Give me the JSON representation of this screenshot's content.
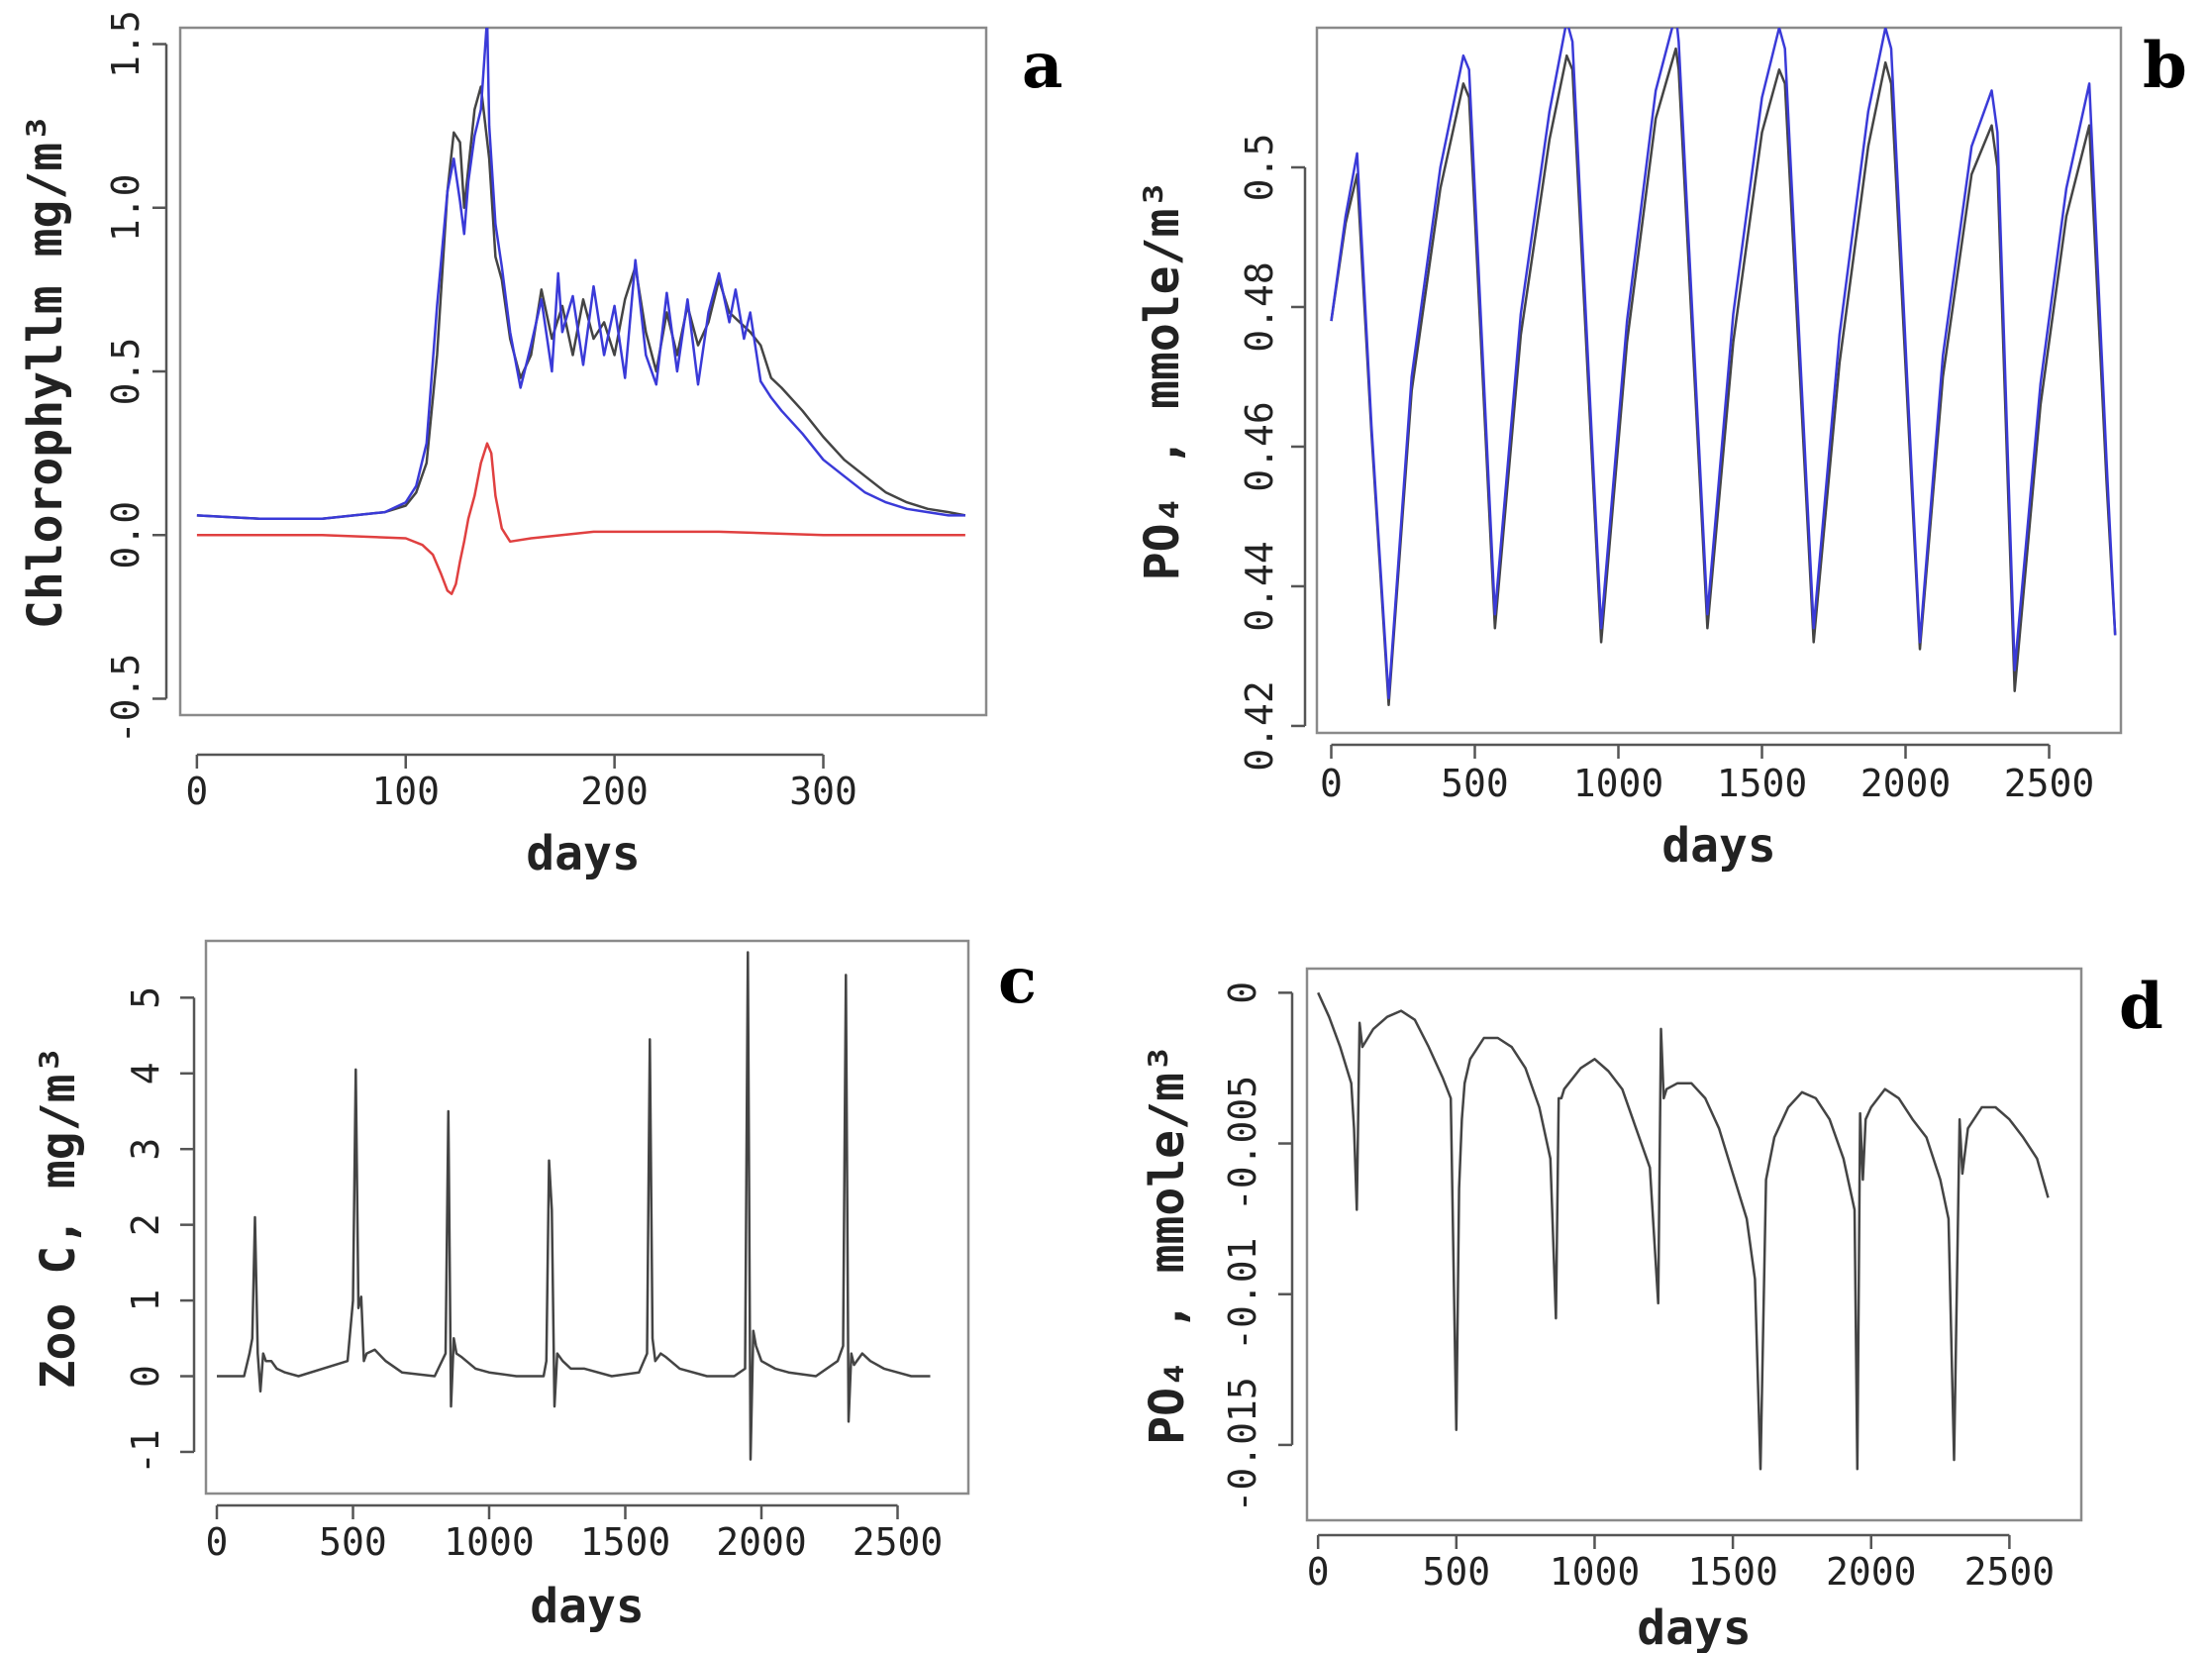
{
  "chart_data": [
    {
      "panel": "a",
      "type": "line",
      "xlabel": "days",
      "ylabel": "Chlorophyllm mg/m³",
      "xlim": [
        -8,
        378
      ],
      "ylim": [
        -0.55,
        1.55
      ],
      "xticks": [
        0,
        100,
        200,
        300
      ],
      "xtick_labels": [
        "0",
        "100",
        "200",
        "300"
      ],
      "yticks": [
        -0.5,
        0.0,
        0.5,
        1.0,
        1.5
      ],
      "ytick_labels": [
        "-0.5",
        "0.0",
        "0.5",
        "1.0",
        "1.5"
      ],
      "series": [
        {
          "name": "black",
          "color": "#444444",
          "x": [
            0,
            30,
            60,
            90,
            100,
            105,
            110,
            115,
            120,
            123,
            126,
            128,
            130,
            133,
            136,
            140,
            143,
            146,
            150,
            155,
            160,
            165,
            170,
            175,
            180,
            185,
            190,
            195,
            200,
            205,
            210,
            215,
            220,
            225,
            230,
            235,
            240,
            245,
            250,
            255,
            260,
            265,
            270,
            275,
            280,
            290,
            300,
            310,
            320,
            330,
            340,
            350,
            360,
            368
          ],
          "y": [
            0.06,
            0.05,
            0.05,
            0.07,
            0.09,
            0.13,
            0.22,
            0.55,
            1.05,
            1.23,
            1.2,
            1.0,
            1.12,
            1.3,
            1.37,
            1.15,
            0.85,
            0.78,
            0.6,
            0.48,
            0.55,
            0.75,
            0.6,
            0.7,
            0.55,
            0.72,
            0.6,
            0.65,
            0.55,
            0.72,
            0.82,
            0.62,
            0.5,
            0.68,
            0.55,
            0.7,
            0.58,
            0.65,
            0.78,
            0.68,
            0.65,
            0.62,
            0.58,
            0.48,
            0.45,
            0.38,
            0.3,
            0.23,
            0.18,
            0.13,
            0.1,
            0.08,
            0.07,
            0.06
          ]
        },
        {
          "name": "blue",
          "color": "#3a3ad8",
          "x": [
            0,
            30,
            60,
            90,
            100,
            105,
            110,
            115,
            120,
            123,
            126,
            128,
            130,
            133,
            136,
            139,
            140,
            143,
            146,
            150,
            155,
            160,
            165,
            170,
            173,
            175,
            180,
            185,
            190,
            195,
            200,
            205,
            210,
            215,
            220,
            225,
            230,
            235,
            240,
            245,
            250,
            255,
            258,
            262,
            265,
            270,
            275,
            280,
            290,
            300,
            310,
            320,
            330,
            340,
            350,
            360,
            368
          ],
          "y": [
            0.06,
            0.05,
            0.05,
            0.07,
            0.1,
            0.15,
            0.28,
            0.7,
            1.05,
            1.15,
            1.02,
            0.92,
            1.08,
            1.22,
            1.3,
            1.58,
            1.25,
            0.95,
            0.82,
            0.62,
            0.45,
            0.58,
            0.72,
            0.5,
            0.8,
            0.62,
            0.73,
            0.52,
            0.76,
            0.55,
            0.7,
            0.48,
            0.84,
            0.55,
            0.46,
            0.74,
            0.5,
            0.72,
            0.46,
            0.68,
            0.8,
            0.65,
            0.75,
            0.6,
            0.68,
            0.47,
            0.42,
            0.38,
            0.31,
            0.23,
            0.18,
            0.13,
            0.1,
            0.08,
            0.07,
            0.06,
            0.06
          ]
        },
        {
          "name": "red",
          "color": "#e04040",
          "x": [
            0,
            60,
            100,
            108,
            113,
            117,
            120,
            122,
            124,
            126,
            128,
            130,
            133,
            136,
            139,
            141,
            143,
            146,
            150,
            160,
            190,
            250,
            300,
            368
          ],
          "y": [
            0.0,
            0.0,
            -0.01,
            -0.03,
            -0.06,
            -0.12,
            -0.17,
            -0.18,
            -0.15,
            -0.08,
            -0.02,
            0.05,
            0.12,
            0.22,
            0.28,
            0.25,
            0.12,
            0.02,
            -0.02,
            -0.01,
            0.01,
            0.01,
            0.0,
            0.0
          ]
        }
      ]
    },
    {
      "panel": "b",
      "type": "line",
      "xlabel": "days",
      "ylabel": "PO₄ , mmole/m³",
      "xlim": [
        -50,
        2750
      ],
      "ylim": [
        0.419,
        0.52
      ],
      "xticks": [
        0,
        500,
        1000,
        1500,
        2000,
        2500
      ],
      "xtick_labels": [
        "0",
        "500",
        "1000",
        "1500",
        "2000",
        "2500"
      ],
      "yticks": [
        0.42,
        0.44,
        0.46,
        0.48,
        0.5
      ],
      "ytick_labels": [
        "0.42",
        "0.44",
        "0.46",
        "0.48",
        "0.5"
      ],
      "series": [
        {
          "name": "black",
          "color": "#444444",
          "x": [
            0,
            50,
            90,
            140,
            200,
            280,
            380,
            460,
            480,
            570,
            660,
            760,
            820,
            840,
            940,
            1030,
            1130,
            1200,
            1210,
            1310,
            1400,
            1500,
            1560,
            1580,
            1680,
            1770,
            1870,
            1930,
            1950,
            2050,
            2130,
            2230,
            2300,
            2320,
            2380,
            2470,
            2560,
            2640,
            2700,
            2730
          ],
          "y": [
            0.478,
            0.492,
            0.499,
            0.462,
            0.423,
            0.468,
            0.497,
            0.512,
            0.51,
            0.434,
            0.476,
            0.504,
            0.516,
            0.514,
            0.432,
            0.475,
            0.507,
            0.517,
            0.514,
            0.434,
            0.475,
            0.505,
            0.514,
            0.512,
            0.432,
            0.472,
            0.503,
            0.515,
            0.512,
            0.431,
            0.47,
            0.499,
            0.506,
            0.5,
            0.425,
            0.466,
            0.493,
            0.506,
            0.455,
            0.433
          ]
        },
        {
          "name": "blue",
          "color": "#3a3ad8",
          "x": [
            0,
            50,
            90,
            140,
            200,
            280,
            380,
            460,
            480,
            570,
            660,
            760,
            820,
            840,
            940,
            1030,
            1130,
            1200,
            1210,
            1310,
            1400,
            1500,
            1560,
            1580,
            1680,
            1770,
            1870,
            1930,
            1950,
            2050,
            2130,
            2230,
            2300,
            2320,
            2380,
            2470,
            2560,
            2640,
            2700,
            2730
          ],
          "y": [
            0.478,
            0.493,
            0.502,
            0.463,
            0.424,
            0.47,
            0.5,
            0.516,
            0.514,
            0.436,
            0.479,
            0.508,
            0.521,
            0.518,
            0.434,
            0.478,
            0.511,
            0.522,
            0.518,
            0.436,
            0.479,
            0.51,
            0.52,
            0.517,
            0.434,
            0.476,
            0.508,
            0.52,
            0.517,
            0.432,
            0.473,
            0.503,
            0.511,
            0.505,
            0.428,
            0.469,
            0.497,
            0.512,
            0.458,
            0.433
          ]
        }
      ]
    },
    {
      "panel": "c",
      "type": "line",
      "xlabel": "days",
      "ylabel": "Zoo C, mg/m³",
      "xlim": [
        -40,
        2760
      ],
      "ylim": [
        -1.55,
        5.75
      ],
      "xticks": [
        0,
        500,
        1000,
        1500,
        2000,
        2500
      ],
      "xtick_labels": [
        "0",
        "500",
        "1000",
        "1500",
        "2000",
        "2500"
      ],
      "yticks": [
        -1,
        0,
        1,
        2,
        3,
        4,
        5
      ],
      "ytick_labels": [
        "-1",
        "0",
        "1",
        "2",
        "3",
        "4",
        "5"
      ],
      "series": [
        {
          "name": "black",
          "color": "#444444",
          "x": [
            0,
            100,
            120,
            130,
            140,
            150,
            160,
            170,
            180,
            200,
            220,
            250,
            300,
            480,
            500,
            510,
            520,
            530,
            540,
            550,
            580,
            620,
            680,
            800,
            840,
            850,
            860,
            870,
            880,
            900,
            950,
            1000,
            1100,
            1200,
            1210,
            1220,
            1230,
            1240,
            1250,
            1270,
            1300,
            1350,
            1450,
            1550,
            1580,
            1590,
            1600,
            1610,
            1630,
            1650,
            1700,
            1800,
            1900,
            1940,
            1950,
            1960,
            1970,
            1980,
            2000,
            2050,
            2100,
            2200,
            2280,
            2300,
            2310,
            2320,
            2330,
            2340,
            2370,
            2400,
            2450,
            2500,
            2550,
            2620
          ],
          "y": [
            0,
            0,
            0.3,
            0.5,
            2.1,
            0.3,
            -0.2,
            0.3,
            0.2,
            0.2,
            0.1,
            0.05,
            0,
            0.2,
            1.0,
            4.05,
            0.9,
            1.05,
            0.2,
            0.3,
            0.35,
            0.2,
            0.05,
            0,
            0.3,
            3.5,
            -0.4,
            0.5,
            0.3,
            0.25,
            0.1,
            0.05,
            0,
            0,
            0.2,
            2.85,
            2.2,
            -0.4,
            0.3,
            0.2,
            0.1,
            0.1,
            0,
            0.05,
            0.3,
            4.45,
            0.5,
            0.2,
            0.3,
            0.25,
            0.1,
            0,
            0,
            0.1,
            5.6,
            -1.1,
            0.6,
            0.4,
            0.2,
            0.1,
            0.05,
            0,
            0.2,
            0.4,
            5.3,
            -0.6,
            0.3,
            0.15,
            0.3,
            0.2,
            0.1,
            0.05,
            0,
            0
          ]
        }
      ]
    },
    {
      "panel": "d",
      "type": "line",
      "xlabel": "days",
      "ylabel": "PO₄ , mmole/m³",
      "xlim": [
        -40,
        2760
      ],
      "ylim": [
        -0.0175,
        0.0008
      ],
      "xticks": [
        0,
        500,
        1000,
        1500,
        2000,
        2500
      ],
      "xtick_labels": [
        "0",
        "500",
        "1000",
        "1500",
        "2000",
        "2500"
      ],
      "yticks": [
        -0.015,
        -0.01,
        -0.005,
        0.0
      ],
      "ytick_labels": [
        "-0.015",
        "-0.01",
        "-0.005",
        "0"
      ],
      "series": [
        {
          "name": "black",
          "color": "#444444",
          "x": [
            0,
            40,
            80,
            120,
            130,
            140,
            150,
            160,
            200,
            250,
            300,
            350,
            400,
            450,
            480,
            500,
            510,
            520,
            530,
            550,
            600,
            650,
            700,
            750,
            800,
            840,
            860,
            870,
            880,
            890,
            950,
            1000,
            1050,
            1100,
            1150,
            1200,
            1230,
            1240,
            1250,
            1260,
            1300,
            1350,
            1400,
            1450,
            1500,
            1550,
            1580,
            1600,
            1620,
            1650,
            1700,
            1750,
            1800,
            1850,
            1900,
            1940,
            1950,
            1960,
            1970,
            1980,
            2000,
            2050,
            2100,
            2150,
            2200,
            2250,
            2280,
            2300,
            2320,
            2330,
            2350,
            2400,
            2450,
            2500,
            2550,
            2600,
            2640
          ],
          "y": [
            0,
            -0.0008,
            -0.0018,
            -0.003,
            -0.0045,
            -0.0072,
            -0.001,
            -0.0018,
            -0.0012,
            -0.0008,
            -0.0006,
            -0.0009,
            -0.0018,
            -0.0028,
            -0.0035,
            -0.0145,
            -0.0065,
            -0.0042,
            -0.003,
            -0.0022,
            -0.0015,
            -0.0015,
            -0.0018,
            -0.0025,
            -0.0038,
            -0.0055,
            -0.0108,
            -0.0035,
            -0.0035,
            -0.0032,
            -0.0025,
            -0.0022,
            -0.0026,
            -0.0032,
            -0.0045,
            -0.0058,
            -0.0103,
            -0.0012,
            -0.0035,
            -0.0032,
            -0.003,
            -0.003,
            -0.0035,
            -0.0045,
            -0.006,
            -0.0075,
            -0.0095,
            -0.0158,
            -0.0062,
            -0.0048,
            -0.0038,
            -0.0033,
            -0.0035,
            -0.0042,
            -0.0055,
            -0.0072,
            -0.0158,
            -0.004,
            -0.0062,
            -0.0042,
            -0.0038,
            -0.0032,
            -0.0035,
            -0.0042,
            -0.0048,
            -0.0062,
            -0.0075,
            -0.0155,
            -0.0042,
            -0.006,
            -0.0045,
            -0.0038,
            -0.0038,
            -0.0042,
            -0.0048,
            -0.0055,
            -0.0068
          ]
        }
      ]
    }
  ],
  "panels": {
    "a": {
      "letter": "a"
    },
    "b": {
      "letter": "b"
    },
    "c": {
      "letter": "c"
    },
    "d": {
      "letter": "d"
    }
  }
}
